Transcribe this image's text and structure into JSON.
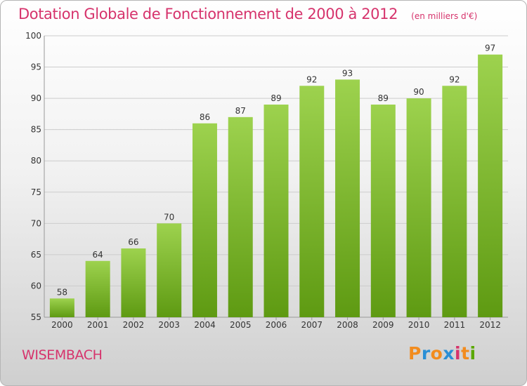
{
  "header": {
    "title": "Dotation Globale de Fonctionnement de 2000 à 2012",
    "subtitle": "(en milliers d'€)"
  },
  "footer": {
    "commune": "WISEMBACH",
    "brand_letters": [
      "P",
      "r",
      "o",
      "x",
      "i",
      "t",
      "i"
    ],
    "brand_colors": [
      "#f28c1e",
      "#2a8fd6",
      "#f28c1e",
      "#2a8fd6",
      "#d6336c",
      "#f28c1e",
      "#5aa800"
    ]
  },
  "colors": {
    "bar_top": "#9dd24e",
    "bar_bottom": "#5e9a12",
    "grid": "#cccccc",
    "accent": "#d6336c"
  },
  "chart_data": {
    "type": "bar",
    "title": "Dotation Globale de Fonctionnement de 2000 à 2012",
    "subtitle": "(en milliers d'€)",
    "categories": [
      "2000",
      "2001",
      "2002",
      "2003",
      "2004",
      "2005",
      "2006",
      "2007",
      "2008",
      "2009",
      "2010",
      "2011",
      "2012"
    ],
    "values": [
      58,
      64,
      66,
      70,
      86,
      87,
      89,
      92,
      93,
      89,
      90,
      92,
      97
    ],
    "ylim": [
      55,
      100
    ],
    "yticks": [
      55,
      60,
      65,
      70,
      75,
      80,
      85,
      90,
      95,
      100
    ],
    "grid": true,
    "legend": "none"
  }
}
